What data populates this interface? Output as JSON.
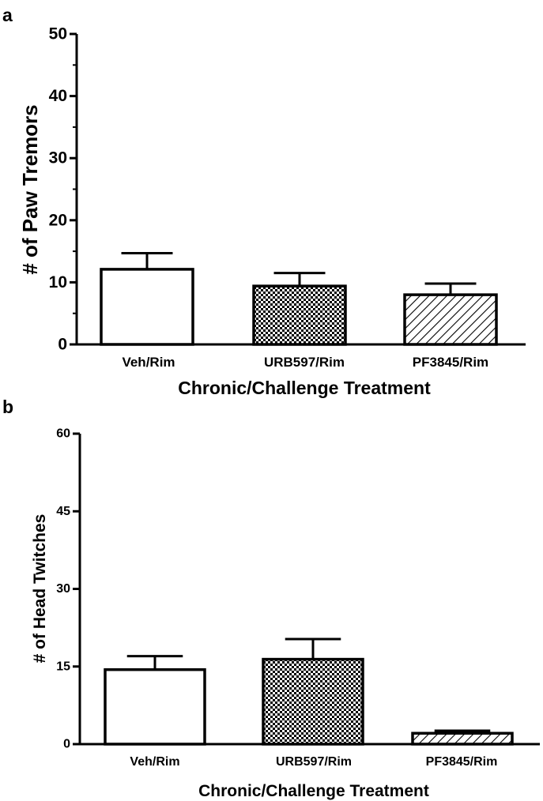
{
  "chart_data": [
    {
      "panel": "a",
      "type": "bar",
      "categories": [
        "Veh/Rim",
        "URB597/Rim",
        "PF3845/Rim"
      ],
      "values": [
        12.1,
        9.4,
        8.0
      ],
      "errors": [
        2.6,
        2.1,
        1.8
      ],
      "fills": [
        "white",
        "checker",
        "hatch"
      ],
      "xlabel": "Chronic/Challenge Treatment",
      "ylabel": "# of Paw Tremors",
      "ylim": [
        0,
        50
      ],
      "yticks": [
        0,
        10,
        20,
        30,
        40,
        50
      ],
      "yticklabels": [
        "0",
        "10",
        "20",
        "30",
        "40",
        "50"
      ],
      "minor_ticks": true
    },
    {
      "panel": "b",
      "type": "bar",
      "categories": [
        "Veh/Rim",
        "URB597/Rim",
        "PF3845/Rim"
      ],
      "values": [
        14.4,
        16.4,
        2.1
      ],
      "errors": [
        2.6,
        3.9,
        0.5
      ],
      "fills": [
        "white",
        "checker",
        "hatch"
      ],
      "xlabel": "Chronic/Challenge Treatment",
      "ylabel": "# of Head Twitches",
      "ylim": [
        0,
        60
      ],
      "yticks": [
        0,
        15,
        30,
        45,
        60
      ],
      "yticklabels": [
        "0",
        "15",
        "30",
        "45",
        "60"
      ],
      "minor_ticks": false
    }
  ],
  "colors": {
    "ink": "#000000",
    "background": "#ffffff"
  }
}
